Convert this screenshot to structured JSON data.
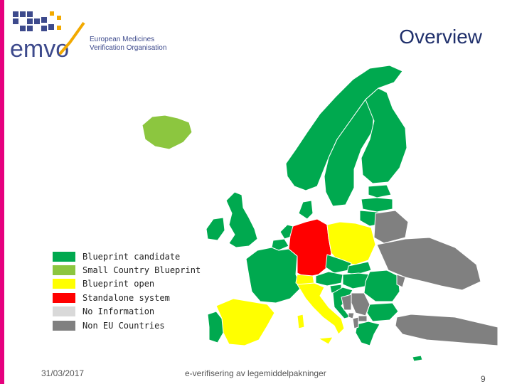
{
  "slide": {
    "title": "Overview",
    "date": "31/03/2017",
    "footer_text": "e-verifisering av legemiddelpakninger",
    "page_number": "9",
    "accent_color": "#e6007e"
  },
  "logo": {
    "wordmark": "emvo",
    "org_line1": "European Medicines",
    "org_line2": "Verification Organisation"
  },
  "legend": {
    "items": [
      {
        "label": "Blueprint candidate",
        "color": "#00a94f"
      },
      {
        "label": "Small Country Blueprint",
        "color": "#8cc63f"
      },
      {
        "label": "Blueprint open",
        "color": "#ffff00"
      },
      {
        "label": "Standalone system",
        "color": "#ff0000"
      },
      {
        "label": "No Information",
        "color": "#d9d9d9"
      },
      {
        "label": "Non EU Countries",
        "color": "#808080"
      }
    ]
  },
  "map": {
    "countries": [
      {
        "name": "iceland",
        "status": "Small Country Blueprint"
      },
      {
        "name": "norway",
        "status": "Blueprint candidate"
      },
      {
        "name": "sweden",
        "status": "Blueprint candidate"
      },
      {
        "name": "finland",
        "status": "Blueprint candidate"
      },
      {
        "name": "estonia",
        "status": "Blueprint candidate"
      },
      {
        "name": "latvia",
        "status": "Blueprint candidate"
      },
      {
        "name": "lithuania",
        "status": "Blueprint candidate"
      },
      {
        "name": "denmark",
        "status": "Blueprint candidate"
      },
      {
        "name": "united-kingdom",
        "status": "Blueprint candidate"
      },
      {
        "name": "ireland",
        "status": "Blueprint candidate"
      },
      {
        "name": "netherlands",
        "status": "Blueprint candidate"
      },
      {
        "name": "belgium",
        "status": "Blueprint candidate"
      },
      {
        "name": "france",
        "status": "Blueprint candidate"
      },
      {
        "name": "germany",
        "status": "Standalone system"
      },
      {
        "name": "poland",
        "status": "Blueprint open"
      },
      {
        "name": "czech-republic",
        "status": "Blueprint candidate"
      },
      {
        "name": "austria",
        "status": "Blueprint candidate"
      },
      {
        "name": "switzerland",
        "status": "Blueprint open"
      },
      {
        "name": "italy",
        "status": "Blueprint open"
      },
      {
        "name": "spain",
        "status": "Blueprint open"
      },
      {
        "name": "portugal",
        "status": "Blueprint candidate"
      },
      {
        "name": "slovakia",
        "status": "Blueprint candidate"
      },
      {
        "name": "hungary",
        "status": "Blueprint candidate"
      },
      {
        "name": "slovenia",
        "status": "Blueprint candidate"
      },
      {
        "name": "croatia",
        "status": "Blueprint candidate"
      },
      {
        "name": "romania",
        "status": "Blueprint candidate"
      },
      {
        "name": "bulgaria",
        "status": "Blueprint candidate"
      },
      {
        "name": "greece",
        "status": "Blueprint candidate"
      },
      {
        "name": "cyprus",
        "status": "Blueprint candidate"
      },
      {
        "name": "belarus",
        "status": "Non EU Countries"
      },
      {
        "name": "ukraine",
        "status": "Non EU Countries"
      },
      {
        "name": "moldova",
        "status": "Non EU Countries"
      },
      {
        "name": "serbia",
        "status": "Non EU Countries"
      },
      {
        "name": "bosnia",
        "status": "Non EU Countries"
      },
      {
        "name": "albania",
        "status": "Non EU Countries"
      },
      {
        "name": "macedonia",
        "status": "Non EU Countries"
      },
      {
        "name": "montenegro",
        "status": "Non EU Countries"
      },
      {
        "name": "turkey",
        "status": "Non EU Countries"
      }
    ]
  }
}
